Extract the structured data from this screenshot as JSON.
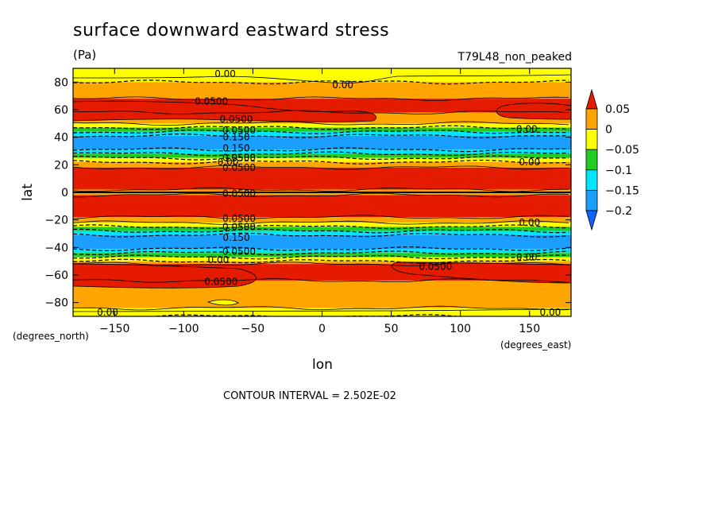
{
  "chart_data": {
    "type": "heatmap",
    "title": "surface downward eastward stress",
    "units": "(Pa)",
    "dataset_label": "T79L48_non_peaked",
    "xlabel": "lon",
    "ylabel": "lat",
    "x_units": "(degrees_east)",
    "y_units": "(degrees_north)",
    "xlim": [
      -180,
      180
    ],
    "ylim": [
      -90,
      90
    ],
    "x_ticks": [
      -150,
      -100,
      -50,
      0,
      50,
      100,
      150
    ],
    "y_ticks": [
      -80,
      -60,
      -40,
      -20,
      0,
      20,
      40,
      60,
      80
    ],
    "footer": "CONTOUR INTERVAL = 2.502E-02",
    "colorbar": {
      "labels": [
        "0.05",
        "0",
        "−0.05",
        "−0.1",
        "−0.15",
        "−0.2"
      ],
      "bins": [
        {
          "min": 0.05,
          "max": null,
          "color": "#e51b00"
        },
        {
          "min": 0.0,
          "max": 0.05,
          "color": "#ffa500"
        },
        {
          "min": -0.05,
          "max": 0.0,
          "color": "#ffff00"
        },
        {
          "min": -0.1,
          "max": -0.05,
          "color": "#22cc22"
        },
        {
          "min": -0.15,
          "max": -0.1,
          "color": "#00e5ff"
        },
        {
          "min": -0.2,
          "max": -0.15,
          "color": "#1a9fff"
        },
        {
          "min": null,
          "max": -0.2,
          "color": "#1561ff"
        }
      ]
    },
    "zonal_bands": [
      {
        "lat_min": 80,
        "lat_max": 90,
        "value": -0.01
      },
      {
        "lat_min": 68,
        "lat_max": 80,
        "value": 0.02
      },
      {
        "lat_min": 58,
        "lat_max": 68,
        "value": 0.06
      },
      {
        "lat_min": 50,
        "lat_max": 58,
        "value": 0.02
      },
      {
        "lat_min": 47,
        "lat_max": 50,
        "value": -0.02
      },
      {
        "lat_min": 44,
        "lat_max": 47,
        "value": -0.07
      },
      {
        "lat_min": 41,
        "lat_max": 44,
        "value": -0.12
      },
      {
        "lat_min": 31,
        "lat_max": 41,
        "value": -0.16
      },
      {
        "lat_min": 28,
        "lat_max": 31,
        "value": -0.12
      },
      {
        "lat_min": 25,
        "lat_max": 28,
        "value": -0.07
      },
      {
        "lat_min": 22,
        "lat_max": 25,
        "value": -0.02
      },
      {
        "lat_min": 18,
        "lat_max": 22,
        "value": 0.02
      },
      {
        "lat_min": 2,
        "lat_max": 18,
        "value": 0.07
      },
      {
        "lat_min": -2,
        "lat_max": 2,
        "value": 0.03
      },
      {
        "lat_min": -18,
        "lat_max": -2,
        "value": 0.07
      },
      {
        "lat_min": -22,
        "lat_max": -18,
        "value": 0.02
      },
      {
        "lat_min": -25,
        "lat_max": -22,
        "value": -0.02
      },
      {
        "lat_min": -28,
        "lat_max": -25,
        "value": -0.07
      },
      {
        "lat_min": -31,
        "lat_max": -28,
        "value": -0.12
      },
      {
        "lat_min": -41,
        "lat_max": -31,
        "value": -0.16
      },
      {
        "lat_min": -44,
        "lat_max": -41,
        "value": -0.12
      },
      {
        "lat_min": -47,
        "lat_max": -44,
        "value": -0.07
      },
      {
        "lat_min": -50,
        "lat_max": -47,
        "value": -0.02
      },
      {
        "lat_min": -52,
        "lat_max": -50,
        "value": 0.02
      },
      {
        "lat_min": -64,
        "lat_max": -52,
        "value": 0.06
      },
      {
        "lat_min": -84,
        "lat_max": -64,
        "value": 0.02
      },
      {
        "lat_min": -90,
        "lat_max": -84,
        "value": -0.01
      }
    ],
    "contour_labels": [
      {
        "text": "0.00",
        "lon": -70,
        "lat": 86
      },
      {
        "text": "0.00",
        "lon": 15,
        "lat": 78
      },
      {
        "text": "0.0500",
        "lon": -80,
        "lat": 66
      },
      {
        "text": "0.0500",
        "lon": -62,
        "lat": 53
      },
      {
        "text": "0.0500",
        "lon": -60,
        "lat": 45
      },
      {
        "text": "0.150",
        "lon": -62,
        "lat": 40
      },
      {
        "text": "0.150",
        "lon": -62,
        "lat": 32
      },
      {
        "text": "0.0500",
        "lon": -60,
        "lat": 25
      },
      {
        "text": "0.00",
        "lon": -68,
        "lat": 22
      },
      {
        "text": "0.0500",
        "lon": -60,
        "lat": 18
      },
      {
        "text": "0.00",
        "lon": 148,
        "lat": 46
      },
      {
        "text": "0.00",
        "lon": 150,
        "lat": 22
      },
      {
        "text": "0.0500",
        "lon": -60,
        "lat": -1
      },
      {
        "text": "0.0500",
        "lon": -60,
        "lat": -19
      },
      {
        "text": "0.00",
        "lon": 150,
        "lat": -22
      },
      {
        "text": "0.0500",
        "lon": -60,
        "lat": -25
      },
      {
        "text": "0.150",
        "lon": -62,
        "lat": -33
      },
      {
        "text": "0.0500",
        "lon": -60,
        "lat": -43
      },
      {
        "text": "0.00",
        "lon": -75,
        "lat": -49
      },
      {
        "text": "0.00",
        "lon": 148,
        "lat": -47
      },
      {
        "text": "0.0500",
        "lon": 82,
        "lat": -54
      },
      {
        "text": "0.0500",
        "lon": -73,
        "lat": -65
      },
      {
        "text": "0.00",
        "lon": -155,
        "lat": -87
      },
      {
        "text": "0.00",
        "lon": 165,
        "lat": -87
      }
    ]
  }
}
